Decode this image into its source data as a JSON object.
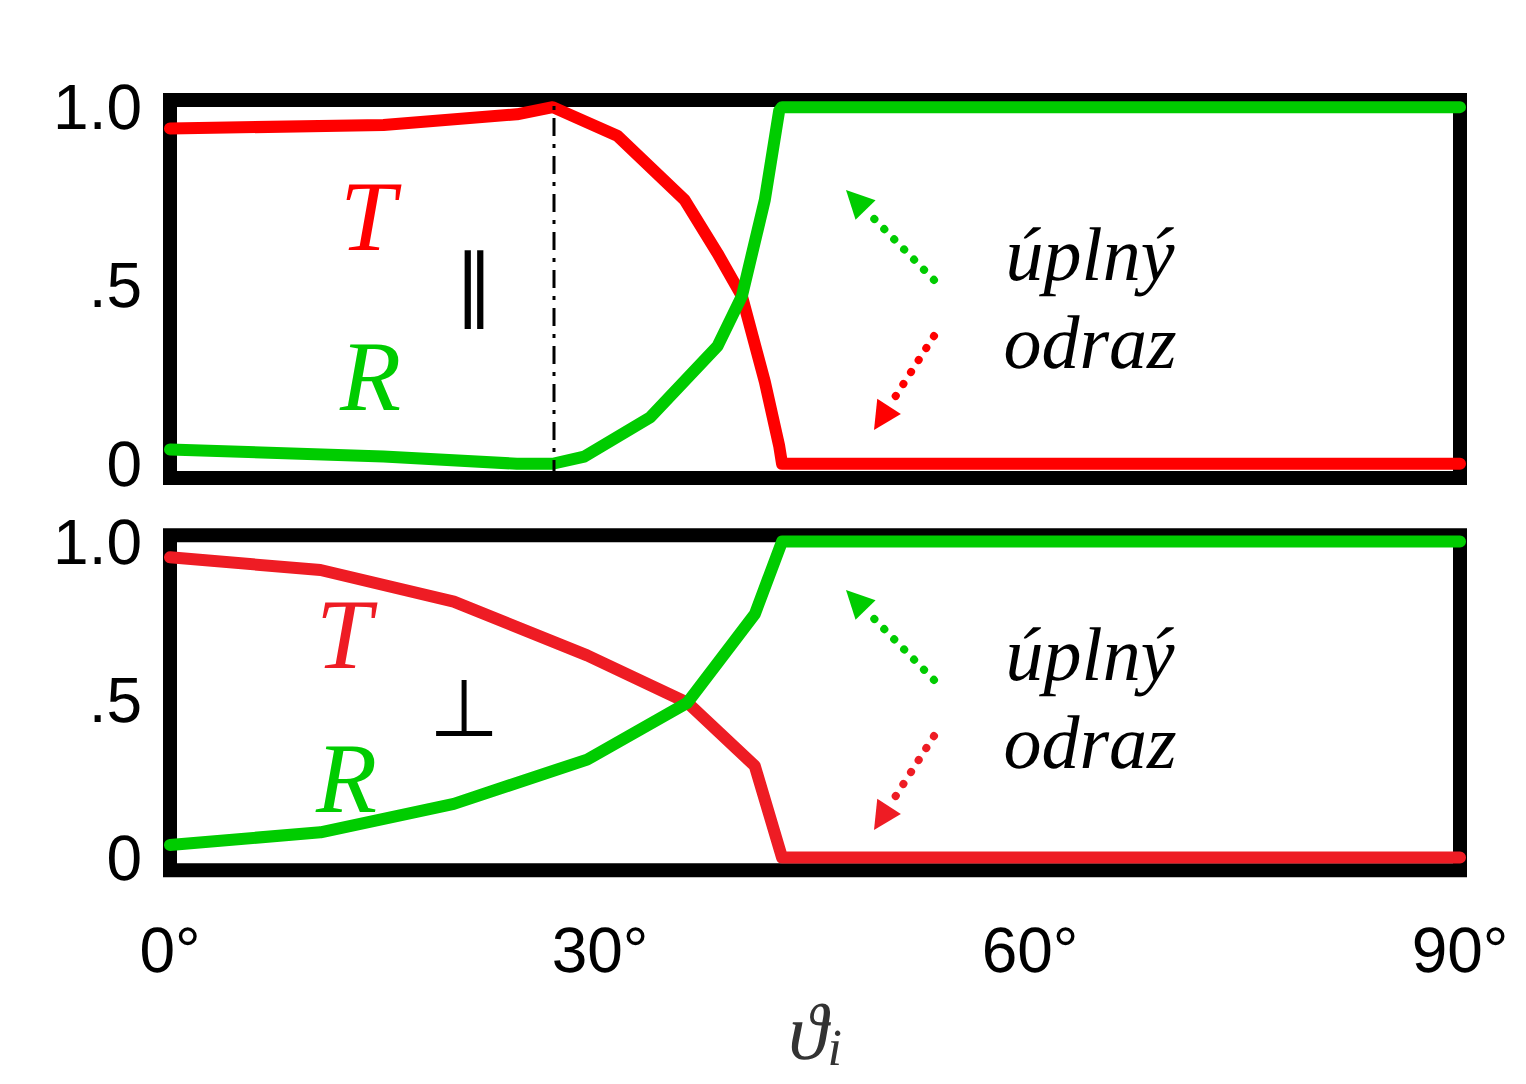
{
  "chart_data": [
    {
      "type": "line",
      "xlim": [
        0,
        90
      ],
      "ylim": [
        -0.04,
        1.02
      ],
      "yticks": [
        {
          "value": 0,
          "label": "0"
        },
        {
          "value": 0.5,
          "label": ".5"
        },
        {
          "value": 1,
          "label": "1.0"
        }
      ],
      "tick_labels": "y",
      "grid": false,
      "legend": "left",
      "marker": "none",
      "line_style": "solid",
      "series": [
        {
          "name": "T",
          "color": "#ff0000",
          "x": [
            0,
            14.9,
            24.2,
            26.7,
            31.2,
            35.9,
            38.2,
            39.9,
            41.5,
            42.5,
            42.7,
            43.6,
            90
          ],
          "values": [
            0.94,
            0.95,
            0.98,
            1.0,
            0.92,
            0.74,
            0.59,
            0.47,
            0.23,
            0.05,
            0,
            0,
            0
          ]
        },
        {
          "name": "R",
          "color": "#00cc00",
          "x": [
            0,
            14.9,
            24.2,
            26.7,
            28.9,
            33.5,
            38.2,
            39.9,
            41.5,
            42.5,
            42.7,
            43.6,
            90
          ],
          "values": [
            0.04,
            0.02,
            0.0,
            0,
            0.02,
            0.13,
            0.33,
            0.47,
            0.74,
            0.99,
            1,
            1,
            1
          ]
        }
      ],
      "ref_lines": [
        {
          "axis": "x",
          "value": 26.7,
          "color": "#000000",
          "line_style": "dashed"
        }
      ],
      "annotations": [
        "∥",
        "úplný\nodraz"
      ]
    },
    {
      "type": "line",
      "xlim": [
        0,
        90
      ],
      "ylim": [
        -0.04,
        1.02
      ],
      "xlabel": "ϑ$_{i}$",
      "xticks": [
        {
          "value": 0,
          "label": "0°"
        },
        {
          "value": 30,
          "label": "30°"
        },
        {
          "value": 60,
          "label": "60°"
        },
        {
          "value": 90,
          "label": "90°"
        }
      ],
      "yticks": [
        {
          "value": 0,
          "label": "0"
        },
        {
          "value": 0.5,
          "label": ".5"
        },
        {
          "value": 1,
          "label": "1.0"
        }
      ],
      "grid": false,
      "legend": "left",
      "marker": "none",
      "line_style": "solid",
      "series": [
        {
          "name": "T",
          "color": "#ee1c24",
          "x": [
            0,
            10.5,
            19.8,
            29.1,
            36.1,
            40.8,
            42.7,
            43.6,
            90
          ],
          "values": [
            0.95,
            0.91,
            0.81,
            0.64,
            0.49,
            0.29,
            0,
            0,
            0
          ]
        },
        {
          "name": "R",
          "color": "#00cc00",
          "x": [
            0,
            10.5,
            19.8,
            29.1,
            36.1,
            40.8,
            42.7,
            43.6,
            90
          ],
          "values": [
            0.04,
            0.08,
            0.17,
            0.31,
            0.49,
            0.77,
            1,
            1,
            1
          ]
        }
      ],
      "annotations": [
        "⊥",
        "úplný\nodraz"
      ]
    }
  ]
}
